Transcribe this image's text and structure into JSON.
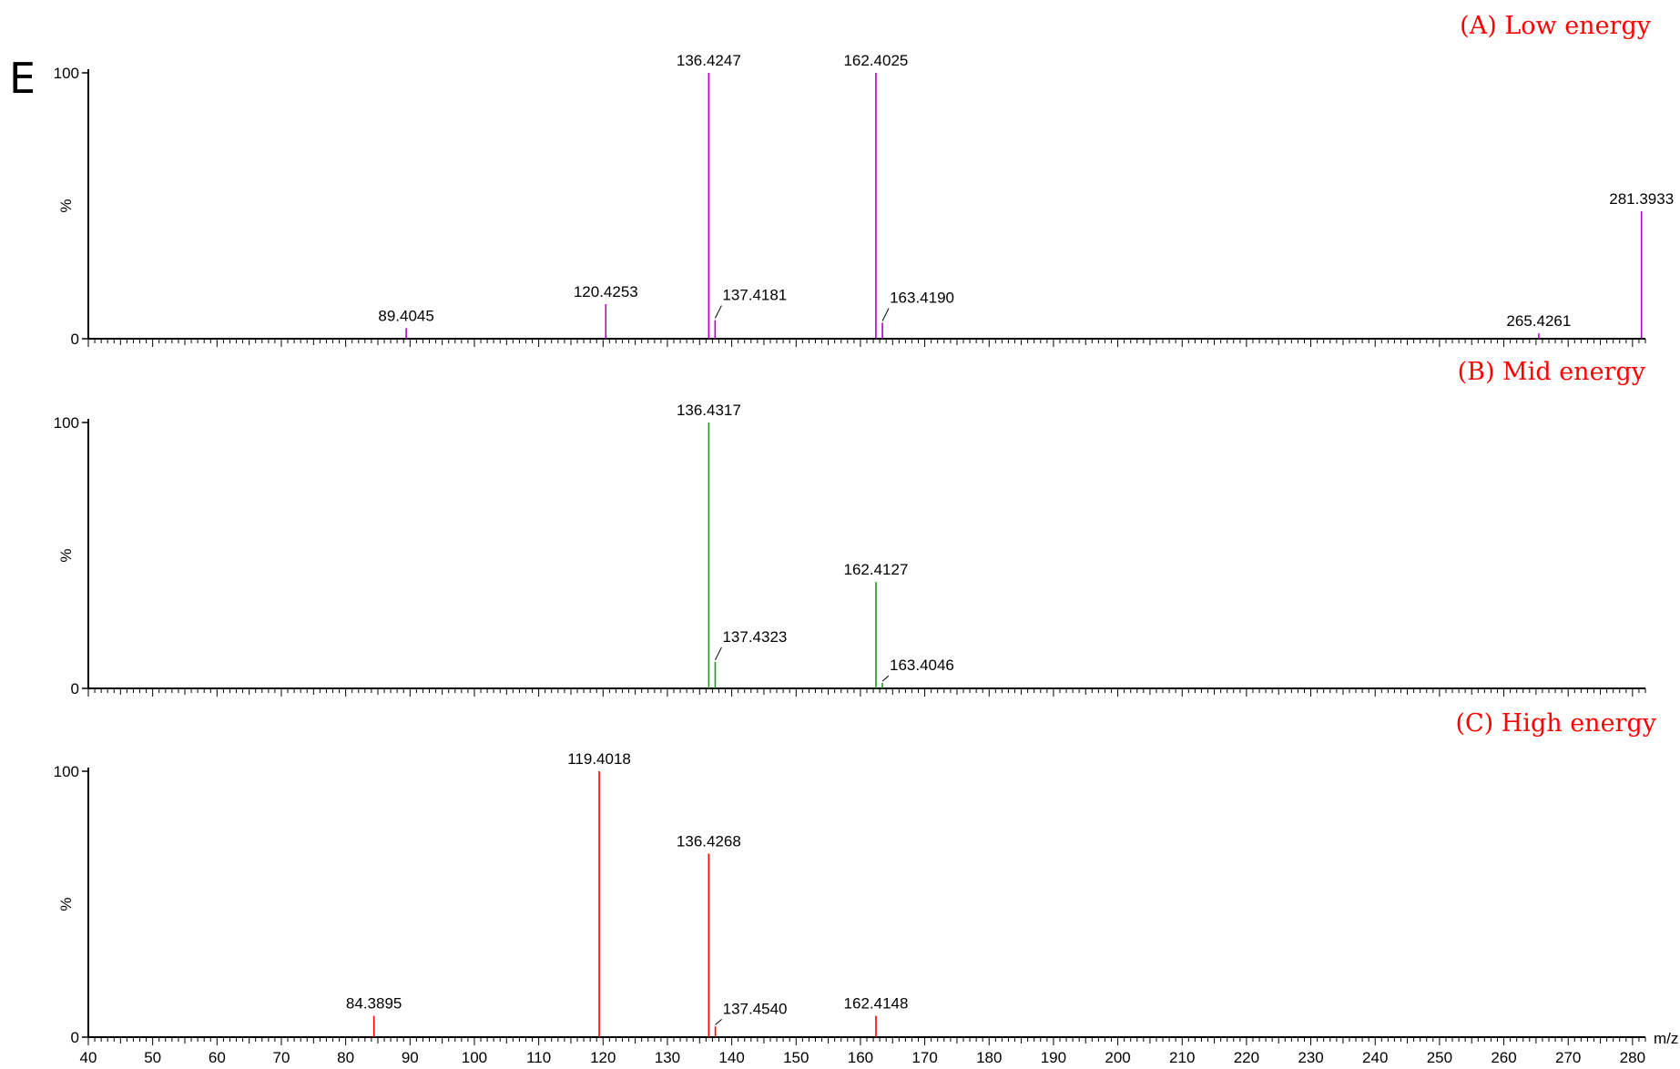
{
  "figure_label": "E",
  "chart_data": [
    {
      "type": "bar",
      "title": "(A) Low energy",
      "ylabel": "%",
      "xlabel": "m/z",
      "xlim": [
        40,
        282
      ],
      "ylim": [
        0,
        100
      ],
      "y_ticks": [
        "0",
        "100"
      ],
      "x_ticks": [
        40,
        50,
        60,
        70,
        80,
        90,
        100,
        110,
        120,
        130,
        140,
        150,
        160,
        170,
        180,
        190,
        200,
        210,
        220,
        230,
        240,
        250,
        260,
        270,
        280
      ],
      "x_tick_labels_shown": false,
      "color": "#b000c8",
      "peaks": [
        {
          "mz": 89.4045,
          "intensity": 4,
          "label": "89.4045"
        },
        {
          "mz": 120.4253,
          "intensity": 13,
          "label": "120.4253"
        },
        {
          "mz": 136.4247,
          "intensity": 100,
          "label": "136.4247"
        },
        {
          "mz": 137.4181,
          "intensity": 7,
          "label": "137.4181"
        },
        {
          "mz": 162.4025,
          "intensity": 100,
          "label": "162.4025"
        },
        {
          "mz": 163.419,
          "intensity": 6,
          "label": "163.4190"
        },
        {
          "mz": 265.4261,
          "intensity": 2,
          "label": "265.4261"
        },
        {
          "mz": 281.3933,
          "intensity": 48,
          "label": "281.3933"
        }
      ]
    },
    {
      "type": "bar",
      "title": "(B) Mid energy",
      "ylabel": "%",
      "xlabel": "m/z",
      "xlim": [
        40,
        282
      ],
      "ylim": [
        0,
        100
      ],
      "y_ticks": [
        "0",
        "100"
      ],
      "x_ticks": [
        40,
        50,
        60,
        70,
        80,
        90,
        100,
        110,
        120,
        130,
        140,
        150,
        160,
        170,
        180,
        190,
        200,
        210,
        220,
        230,
        240,
        250,
        260,
        270,
        280
      ],
      "x_tick_labels_shown": false,
      "color": "#1a9a1a",
      "peaks": [
        {
          "mz": 136.4317,
          "intensity": 100,
          "label": "136.4317"
        },
        {
          "mz": 137.4323,
          "intensity": 10,
          "label": "137.4323"
        },
        {
          "mz": 162.4127,
          "intensity": 40,
          "label": "162.4127"
        },
        {
          "mz": 163.4046,
          "intensity": 2,
          "label": "163.4046"
        }
      ]
    },
    {
      "type": "bar",
      "title": "(C) High energy",
      "ylabel": "%",
      "xlabel": "m/z",
      "xlim": [
        40,
        282
      ],
      "ylim": [
        0,
        100
      ],
      "y_ticks": [
        "0",
        "100"
      ],
      "x_ticks": [
        40,
        50,
        60,
        70,
        80,
        90,
        100,
        110,
        120,
        130,
        140,
        150,
        160,
        170,
        180,
        190,
        200,
        210,
        220,
        230,
        240,
        250,
        260,
        270,
        280
      ],
      "x_tick_labels_shown": true,
      "color": "#ff0000",
      "peaks": [
        {
          "mz": 84.3895,
          "intensity": 8,
          "label": "84.3895"
        },
        {
          "mz": 119.4018,
          "intensity": 100,
          "label": "119.4018"
        },
        {
          "mz": 136.4268,
          "intensity": 69,
          "label": "136.4268"
        },
        {
          "mz": 137.454,
          "intensity": 4,
          "label": "137.4540"
        },
        {
          "mz": 162.4148,
          "intensity": 8,
          "label": "162.4148"
        }
      ]
    }
  ]
}
